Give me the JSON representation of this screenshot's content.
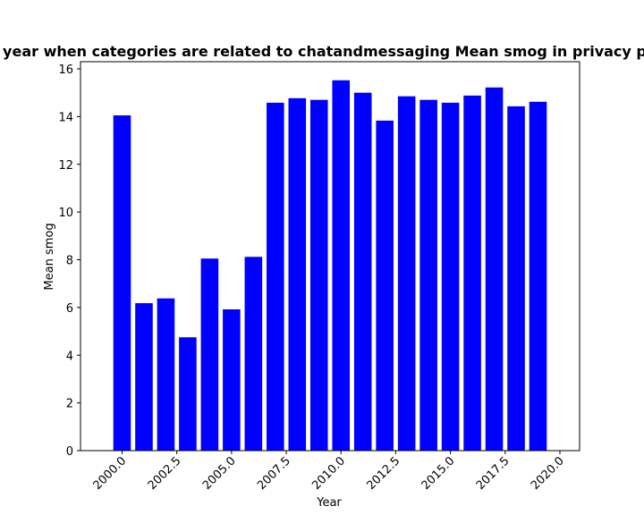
{
  "chart_data": {
    "type": "bar",
    "title": "Mean smog by year when categories are related to chatandmessaging Mean smog in privacy policies by year",
    "xlabel": "Year",
    "ylabel": "Mean smog",
    "bar_color": "#0000ff",
    "xlim": [
      1998.1,
      2020.9
    ],
    "ylim": [
      0,
      16.3
    ],
    "x_ticks": [
      2000.0,
      2002.5,
      2005.0,
      2007.5,
      2010.0,
      2012.5,
      2015.0,
      2017.5,
      2020.0
    ],
    "x_tick_labels": [
      "2000.0",
      "2002.5",
      "2005.0",
      "2007.5",
      "2010.0",
      "2012.5",
      "2015.0",
      "2017.5",
      "2020.0"
    ],
    "y_ticks": [
      0,
      2,
      4,
      6,
      8,
      10,
      12,
      14,
      16
    ],
    "y_tick_labels": [
      "0",
      "2",
      "4",
      "6",
      "8",
      "10",
      "12",
      "14",
      "16"
    ],
    "x": [
      2000,
      2001,
      2002,
      2003,
      2004,
      2005,
      2006,
      2007,
      2008,
      2009,
      2010,
      2011,
      2012,
      2013,
      2014,
      2015,
      2016,
      2017,
      2018,
      2019
    ],
    "values": [
      14.05,
      6.18,
      6.38,
      4.75,
      8.05,
      5.92,
      8.12,
      14.58,
      14.77,
      14.7,
      15.52,
      15.0,
      13.83,
      14.85,
      14.7,
      14.58,
      14.88,
      15.22,
      14.43,
      14.62
    ],
    "grid": false,
    "legend": "none"
  }
}
